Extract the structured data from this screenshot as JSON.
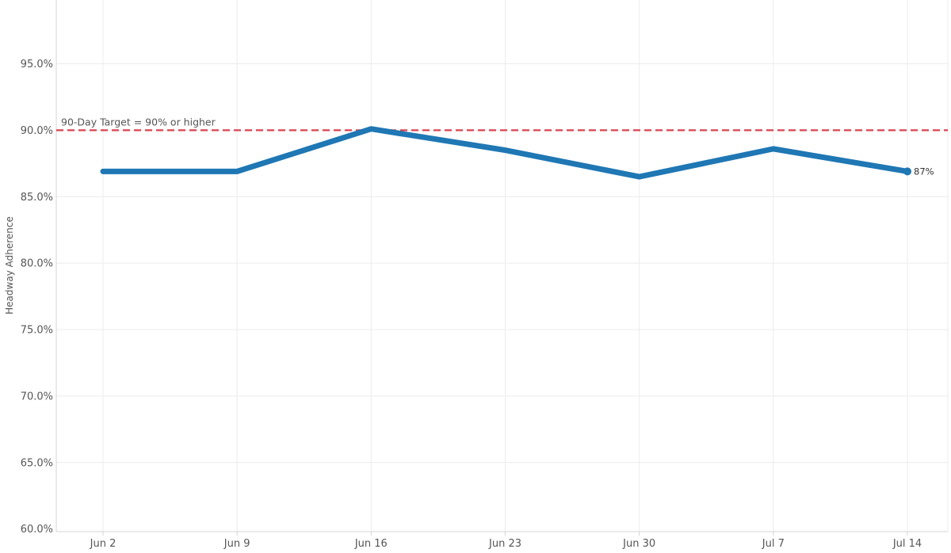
{
  "chart_data": {
    "type": "line",
    "ylabel": "Headway Adherence",
    "xlabel": "",
    "x": [
      "Jun 2",
      "Jun 9",
      "Jun 16",
      "Jun 23",
      "Jun 30",
      "Jul 7",
      "Jul 14"
    ],
    "series": [
      {
        "values": [
          86.9,
          86.9,
          90.1,
          88.5,
          86.5,
          88.6,
          86.9
        ]
      }
    ],
    "y_ticks": [
      "60.0%",
      "65.0%",
      "70.0%",
      "75.0%",
      "80.0%",
      "85.0%",
      "90.0%",
      "95.0%"
    ],
    "ylim": [
      59.8,
      99.8
    ],
    "grid": true,
    "reference_line": {
      "value": 90,
      "label": "90-Day Target = 90% or higher"
    },
    "end_label": "87%",
    "colors": {
      "line": "#1f77b4",
      "reference": "#d9434f",
      "grid": "#ececec",
      "axis": "#d4d4d4"
    }
  }
}
